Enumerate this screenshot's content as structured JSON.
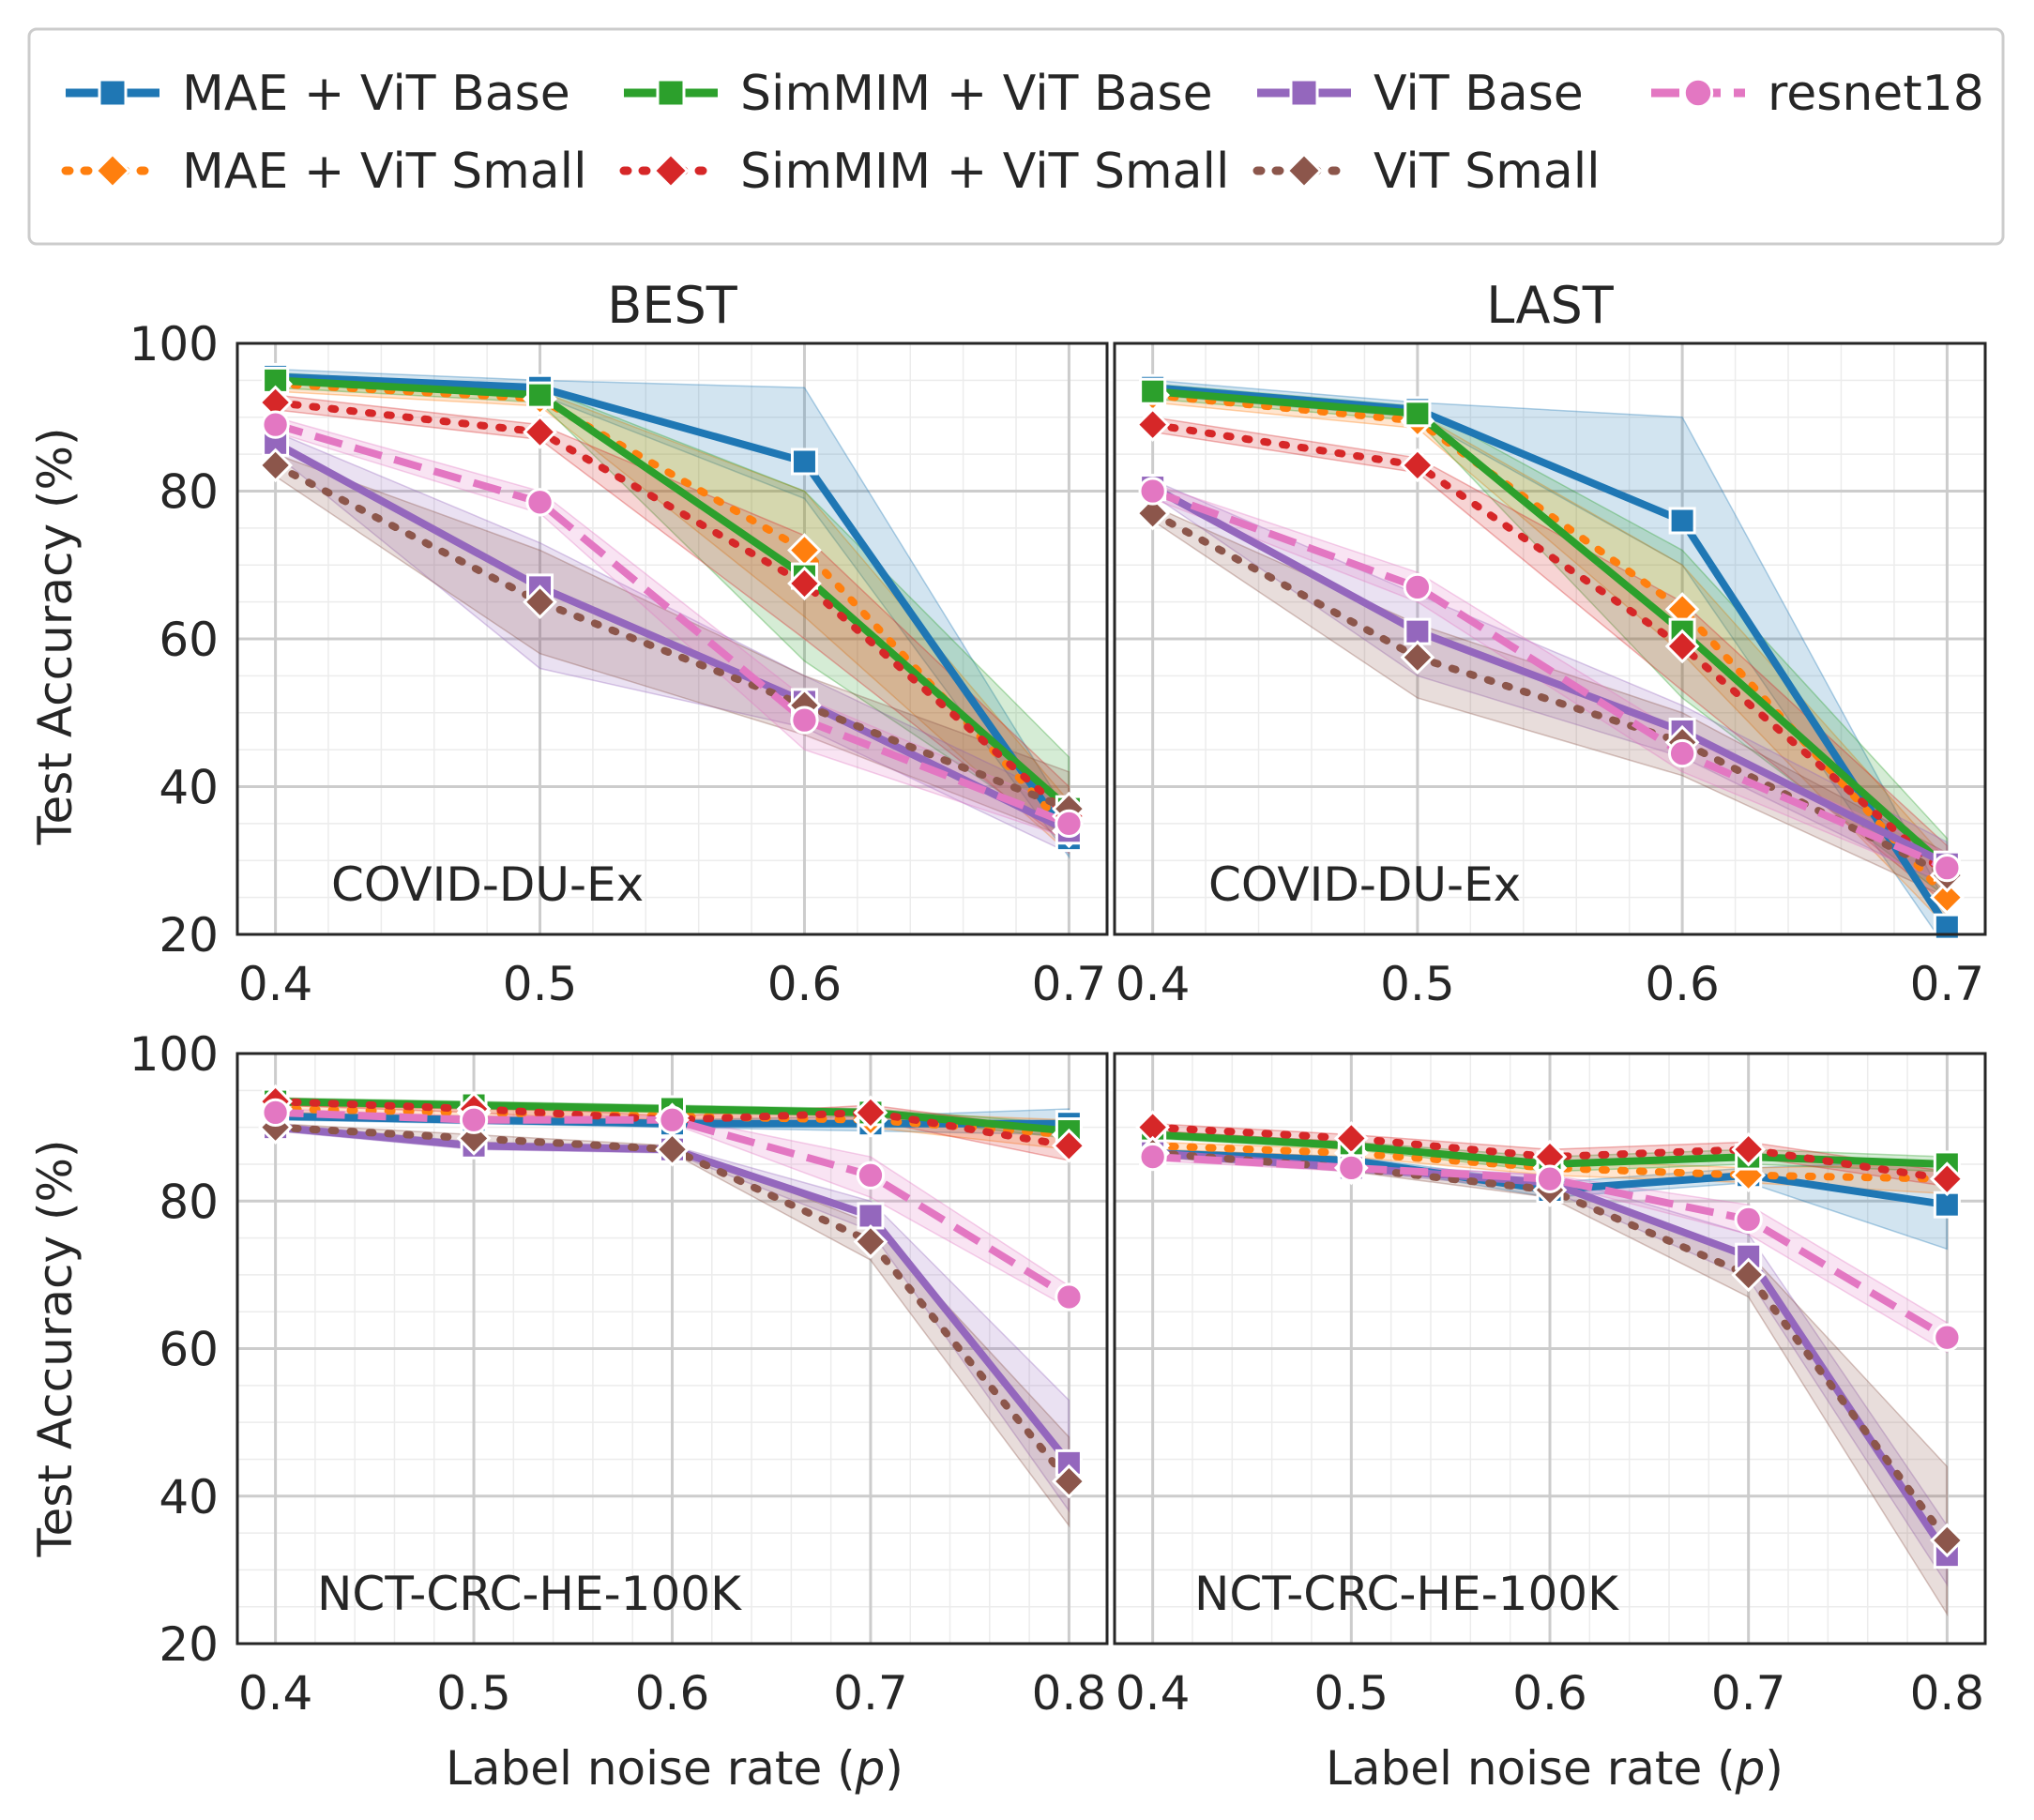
{
  "legend": {
    "entries": [
      {
        "key": "mae_base",
        "label": "MAE + ViT Base"
      },
      {
        "key": "simmim_base",
        "label": "SimMIM + ViT Base"
      },
      {
        "key": "vit_base",
        "label": "ViT Base"
      },
      {
        "key": "resnet18",
        "label": "resnet18"
      },
      {
        "key": "mae_small",
        "label": "MAE + ViT Small"
      },
      {
        "key": "simmim_small",
        "label": "SimMIM + ViT Small"
      },
      {
        "key": "vit_small",
        "label": "ViT Small"
      }
    ]
  },
  "series_style": {
    "mae_base": {
      "color": "#1f77b4",
      "dash": "solid",
      "marker": "square"
    },
    "mae_small": {
      "color": "#ff7f0e",
      "dash": "dot",
      "marker": "diamond"
    },
    "simmim_base": {
      "color": "#2ca02c",
      "dash": "solid",
      "marker": "square"
    },
    "simmim_small": {
      "color": "#d62728",
      "dash": "dot",
      "marker": "diamond"
    },
    "vit_base": {
      "color": "#9467bd",
      "dash": "solid",
      "marker": "square"
    },
    "vit_small": {
      "color": "#8c564b",
      "dash": "dot",
      "marker": "diamond"
    },
    "resnet18": {
      "color": "#e377c2",
      "dash": "dash",
      "marker": "circle"
    }
  },
  "axes": {
    "ylabel": "Test Accuracy (%)",
    "xlabel_prefix": "Label noise rate (",
    "xlabel_var": "p",
    "xlabel_suffix": ")"
  },
  "chart_data": [
    {
      "type": "line",
      "title": "BEST",
      "dataset": "COVID-DU-Ex",
      "x": [
        0.4,
        0.5,
        0.6,
        0.7
      ],
      "xticks": [
        "0.4",
        "0.5",
        "0.6",
        "0.7"
      ],
      "ylim": [
        20,
        100
      ],
      "yticks": [
        20,
        40,
        60,
        80,
        100
      ],
      "series": [
        {
          "key": "mae_base",
          "name": "MAE + ViT Base",
          "values": [
            95.5,
            94.0,
            84.0,
            33.0
          ],
          "lo": [
            94.5,
            93.0,
            79.0,
            30.5
          ],
          "hi": [
            96.5,
            95.0,
            94.0,
            36.0
          ]
        },
        {
          "key": "mae_small",
          "name": "MAE + ViT Small",
          "values": [
            94.5,
            92.5,
            72.0,
            34.0
          ],
          "lo": [
            93.5,
            91.5,
            63.0,
            31.0
          ],
          "hi": [
            95.5,
            93.5,
            80.0,
            38.0
          ]
        },
        {
          "key": "simmim_base",
          "name": "SimMIM + ViT Base",
          "values": [
            95.0,
            93.0,
            68.5,
            37.0
          ],
          "lo": [
            94.0,
            92.0,
            57.0,
            33.0
          ],
          "hi": [
            96.0,
            94.0,
            80.0,
            44.0
          ]
        },
        {
          "key": "simmim_small",
          "name": "SimMIM + ViT Small",
          "values": [
            92.0,
            88.0,
            67.5,
            36.0
          ],
          "lo": [
            91.0,
            87.0,
            60.0,
            32.0
          ],
          "hi": [
            93.0,
            89.0,
            74.0,
            40.0
          ]
        },
        {
          "key": "vit_base",
          "name": "ViT Base",
          "values": [
            86.5,
            67.0,
            51.5,
            34.0
          ],
          "lo": [
            85.0,
            56.0,
            48.0,
            31.0
          ],
          "hi": [
            88.0,
            73.0,
            55.0,
            38.0
          ]
        },
        {
          "key": "vit_small",
          "name": "ViT Small",
          "values": [
            83.5,
            65.0,
            51.0,
            37.0
          ],
          "lo": [
            82.0,
            58.0,
            47.0,
            33.0
          ],
          "hi": [
            85.0,
            72.0,
            55.0,
            42.0
          ]
        },
        {
          "key": "resnet18",
          "name": "resnet18",
          "values": [
            89.0,
            78.5,
            49.0,
            35.0
          ],
          "lo": [
            88.0,
            77.0,
            45.0,
            33.0
          ],
          "hi": [
            90.0,
            80.0,
            52.0,
            37.0
          ]
        }
      ]
    },
    {
      "type": "line",
      "title": "LAST",
      "dataset": "COVID-DU-Ex",
      "x": [
        0.4,
        0.5,
        0.6,
        0.7
      ],
      "xticks": [
        "0.4",
        "0.5",
        "0.6",
        "0.7"
      ],
      "ylim": [
        20,
        100
      ],
      "yticks": [
        20,
        40,
        60,
        80,
        100
      ],
      "series": [
        {
          "key": "mae_base",
          "name": "MAE + ViT Base",
          "values": [
            94.0,
            91.0,
            76.0,
            21.0
          ],
          "lo": [
            93.0,
            90.0,
            70.0,
            18.0
          ],
          "hi": [
            95.0,
            92.0,
            90.0,
            24.0
          ]
        },
        {
          "key": "mae_small",
          "name": "MAE + ViT Small",
          "values": [
            93.0,
            89.5,
            64.0,
            25.0
          ],
          "lo": [
            92.0,
            88.5,
            58.0,
            21.0
          ],
          "hi": [
            94.0,
            90.5,
            70.0,
            30.0
          ]
        },
        {
          "key": "simmim_base",
          "name": "SimMIM + ViT Base",
          "values": [
            93.5,
            90.5,
            61.0,
            29.0
          ],
          "lo": [
            92.5,
            89.5,
            52.0,
            25.0
          ],
          "hi": [
            94.5,
            91.5,
            72.0,
            33.0
          ]
        },
        {
          "key": "simmim_small",
          "name": "SimMIM + ViT Small",
          "values": [
            89.0,
            83.5,
            59.0,
            28.0
          ],
          "lo": [
            88.0,
            82.5,
            53.0,
            24.0
          ],
          "hi": [
            90.0,
            84.5,
            65.0,
            32.0
          ]
        },
        {
          "key": "vit_base",
          "name": "ViT Base",
          "values": [
            80.5,
            61.0,
            47.5,
            29.5
          ],
          "lo": [
            79.5,
            55.0,
            44.0,
            26.5
          ],
          "hi": [
            81.5,
            66.0,
            51.0,
            32.5
          ]
        },
        {
          "key": "vit_small",
          "name": "ViT Small",
          "values": [
            77.0,
            57.5,
            46.0,
            28.0
          ],
          "lo": [
            76.0,
            52.0,
            41.5,
            25.0
          ],
          "hi": [
            78.0,
            62.0,
            50.0,
            31.0
          ]
        },
        {
          "key": "resnet18",
          "name": "resnet18",
          "values": [
            80.0,
            67.0,
            44.5,
            29.0
          ],
          "lo": [
            79.0,
            65.0,
            42.0,
            27.0
          ],
          "hi": [
            81.0,
            69.0,
            47.0,
            31.0
          ]
        }
      ]
    },
    {
      "type": "line",
      "title": "",
      "dataset": "NCT-CRC-HE-100K",
      "x": [
        0.4,
        0.5,
        0.6,
        0.7,
        0.8
      ],
      "xticks": [
        "0.4",
        "0.5",
        "0.6",
        "0.7",
        "0.8"
      ],
      "ylim": [
        20,
        100
      ],
      "yticks": [
        20,
        40,
        60,
        80,
        100
      ],
      "series": [
        {
          "key": "mae_base",
          "name": "MAE + ViT Base",
          "values": [
            91.5,
            91.0,
            90.5,
            90.5,
            90.5
          ],
          "lo": [
            91.0,
            90.5,
            90.0,
            89.5,
            89.0
          ],
          "hi": [
            92.0,
            91.5,
            91.0,
            91.5,
            92.5
          ]
        },
        {
          "key": "mae_small",
          "name": "MAE + ViT Small",
          "values": [
            92.5,
            92.0,
            91.5,
            91.0,
            89.0
          ],
          "lo": [
            92.0,
            91.5,
            91.0,
            90.0,
            87.0
          ],
          "hi": [
            93.0,
            92.5,
            92.0,
            92.0,
            91.0
          ]
        },
        {
          "key": "simmim_base",
          "name": "SimMIM + ViT Base",
          "values": [
            93.5,
            93.0,
            92.5,
            92.0,
            89.5
          ],
          "lo": [
            93.0,
            92.5,
            92.0,
            91.5,
            88.5
          ],
          "hi": [
            94.0,
            93.5,
            93.0,
            92.5,
            90.5
          ]
        },
        {
          "key": "simmim_small",
          "name": "SimMIM + ViT Small",
          "values": [
            93.5,
            92.5,
            91.0,
            92.0,
            87.5
          ],
          "lo": [
            93.0,
            92.0,
            90.5,
            91.0,
            85.5
          ],
          "hi": [
            94.0,
            93.0,
            91.5,
            93.0,
            89.5
          ]
        },
        {
          "key": "vit_base",
          "name": "ViT Base",
          "values": [
            90.0,
            87.5,
            87.0,
            78.0,
            44.5
          ],
          "lo": [
            89.5,
            87.0,
            86.5,
            76.0,
            38.0
          ],
          "hi": [
            90.5,
            88.0,
            87.5,
            80.0,
            53.0
          ]
        },
        {
          "key": "vit_small",
          "name": "ViT Small",
          "values": [
            90.0,
            88.5,
            87.0,
            74.5,
            42.0
          ],
          "lo": [
            89.5,
            88.0,
            86.5,
            72.0,
            36.0
          ],
          "hi": [
            90.5,
            89.0,
            87.5,
            77.0,
            48.0
          ]
        },
        {
          "key": "resnet18",
          "name": "resnet18",
          "values": [
            92.0,
            91.0,
            91.0,
            83.5,
            67.0
          ],
          "lo": [
            91.5,
            90.5,
            90.5,
            80.5,
            65.5
          ],
          "hi": [
            92.5,
            91.5,
            91.5,
            86.0,
            68.5
          ]
        }
      ]
    },
    {
      "type": "line",
      "title": "",
      "dataset": "NCT-CRC-HE-100K",
      "x": [
        0.4,
        0.5,
        0.6,
        0.7,
        0.8
      ],
      "xticks": [
        "0.4",
        "0.5",
        "0.6",
        "0.7",
        "0.8"
      ],
      "ylim": [
        20,
        100
      ],
      "yticks": [
        20,
        40,
        60,
        80,
        100
      ],
      "series": [
        {
          "key": "mae_base",
          "name": "MAE + ViT Base",
          "values": [
            86.5,
            85.5,
            81.5,
            83.5,
            79.5
          ],
          "lo": [
            86.0,
            85.0,
            80.5,
            82.5,
            73.5
          ],
          "hi": [
            87.0,
            86.0,
            82.5,
            84.5,
            85.5
          ]
        },
        {
          "key": "mae_small",
          "name": "MAE + ViT Small",
          "values": [
            87.5,
            86.5,
            84.5,
            83.5,
            83.0
          ],
          "lo": [
            87.0,
            86.0,
            83.5,
            82.5,
            81.0
          ],
          "hi": [
            88.0,
            87.0,
            85.5,
            84.5,
            85.0
          ]
        },
        {
          "key": "simmim_base",
          "name": "SimMIM + ViT Base",
          "values": [
            89.0,
            87.5,
            85.0,
            86.0,
            85.0
          ],
          "lo": [
            88.5,
            87.0,
            84.0,
            85.0,
            84.0
          ],
          "hi": [
            89.5,
            88.0,
            86.0,
            87.0,
            86.0
          ]
        },
        {
          "key": "simmim_small",
          "name": "SimMIM + ViT Small",
          "values": [
            90.0,
            88.5,
            86.0,
            87.0,
            83.0
          ],
          "lo": [
            89.5,
            88.0,
            85.0,
            86.0,
            82.0
          ],
          "hi": [
            90.5,
            89.0,
            87.0,
            88.0,
            84.0
          ]
        },
        {
          "key": "vit_base",
          "name": "ViT Base",
          "values": [
            86.5,
            84.5,
            82.5,
            72.5,
            32.0
          ],
          "lo": [
            86.0,
            84.0,
            81.5,
            69.5,
            28.0
          ],
          "hi": [
            87.0,
            85.0,
            83.5,
            75.5,
            36.0
          ]
        },
        {
          "key": "vit_small",
          "name": "ViT Small",
          "values": [
            86.5,
            84.5,
            81.5,
            70.0,
            34.0
          ],
          "lo": [
            86.0,
            84.0,
            80.5,
            67.0,
            24.0
          ],
          "hi": [
            87.0,
            85.0,
            82.5,
            73.0,
            44.0
          ]
        },
        {
          "key": "resnet18",
          "name": "resnet18",
          "values": [
            86.0,
            84.5,
            83.0,
            77.5,
            61.5
          ],
          "lo": [
            85.5,
            84.0,
            82.5,
            75.5,
            59.5
          ],
          "hi": [
            86.5,
            85.0,
            83.5,
            79.5,
            63.5
          ]
        }
      ]
    }
  ]
}
